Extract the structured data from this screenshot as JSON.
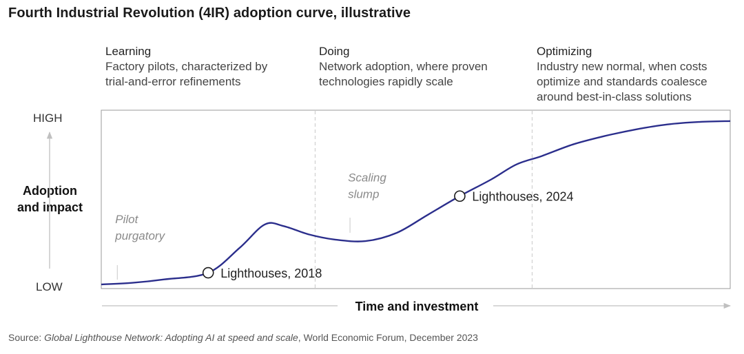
{
  "title": "Fourth Industrial Revolution (4IR) adoption curve, illustrative",
  "phases": [
    {
      "name": "Learning",
      "line1": "Factory pilots, characterized by",
      "line2": "trial-and-error refinements",
      "line3": ""
    },
    {
      "name": "Doing",
      "line1": "Network adoption, where proven",
      "line2": "technologies rapidly scale",
      "line3": ""
    },
    {
      "name": "Optimizing",
      "line1": "Industry new normal, when costs",
      "line2": "optimize and standards coalesce",
      "line3": "around best-in-class solutions"
    }
  ],
  "y_high": "HIGH",
  "y_low": "LOW",
  "y_axis_title_line1": "Adoption",
  "y_axis_title_line2": "and impact",
  "x_axis_title": "Time and investment",
  "source": {
    "prefix": "Source: ",
    "italic": "Global Lighthouse Network: Adopting AI at speed and scale",
    "suffix": ", World Economic Forum, December 2023"
  },
  "colors": {
    "curve": "#2b2e8c",
    "frame": "#999999",
    "divider": "#c8c8c8",
    "annotation": "#8a8a8a"
  },
  "chart_data": {
    "type": "line",
    "title": "Fourth Industrial Revolution (4IR) adoption curve, illustrative",
    "xlabel": "Time and investment",
    "ylabel": "Adoption and impact",
    "x_range": [
      0,
      100
    ],
    "y_range": [
      0,
      100
    ],
    "y_tick_labels": [
      "LOW",
      "HIGH"
    ],
    "phase_boundaries": [
      34,
      68.5
    ],
    "series": [
      {
        "name": "4IR adoption",
        "x": [
          0,
          5,
          10,
          17,
          22,
          26,
          29,
          33,
          37,
          42,
          47,
          52,
          57,
          62,
          66,
          70,
          75,
          80,
          85,
          90,
          95,
          100
        ],
        "y": [
          0,
          1,
          3,
          7,
          22,
          36,
          35,
          30,
          27,
          26,
          31,
          42,
          53,
          63,
          72,
          77,
          84,
          89,
          93,
          96,
          97.5,
          98
        ]
      }
    ],
    "markers": [
      {
        "label": "Lighthouses, 2018",
        "x": 17,
        "y": 7
      },
      {
        "label": "Lighthouses, 2024",
        "x": 57,
        "y": 53
      }
    ],
    "annotations": [
      {
        "line1": "Pilot",
        "line2": "purgatory",
        "x": 2,
        "y": 12
      },
      {
        "line1": "Scaling",
        "line2": "slump",
        "x": 39,
        "y": 37
      }
    ]
  }
}
